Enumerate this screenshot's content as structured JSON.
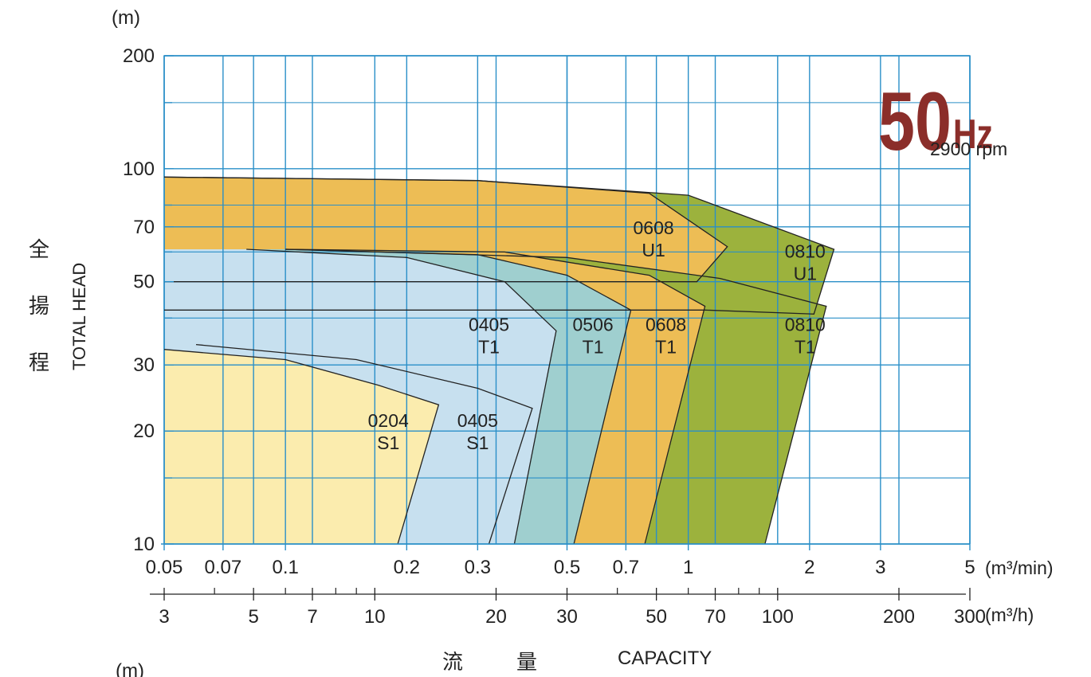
{
  "chart_data": {
    "type": "area",
    "title": "",
    "frequency_main": "50",
    "frequency_unit": "Hz",
    "speed": "2900 rpm",
    "y_unit_top": "(m)",
    "y_unit_bottom": "(m)",
    "ylabel_en": "TOTAL HEAD",
    "ylabel_cn": [
      "全",
      "揚",
      "程"
    ],
    "xlabel_en": "CAPACITY",
    "xlabel_cn": [
      "流",
      "量"
    ],
    "x_scale": "log",
    "y_scale": "log",
    "grid": true,
    "x_unit_min": "(m³/min)",
    "x_unit_h": "(m³/h)",
    "xlim_min": [
      0.05,
      5
    ],
    "ylim": [
      10,
      200
    ],
    "y_ticks": [
      {
        "value": 10,
        "label": "10"
      },
      {
        "value": 20,
        "label": "20"
      },
      {
        "value": 30,
        "label": "30"
      },
      {
        "value": 50,
        "label": "50"
      },
      {
        "value": 70,
        "label": "70"
      },
      {
        "value": 100,
        "label": "100"
      },
      {
        "value": 200,
        "label": "200"
      }
    ],
    "x_ticks_min": [
      {
        "value": 0.05,
        "label": "0.05"
      },
      {
        "value": 0.07,
        "label": "0.07"
      },
      {
        "value": 0.1,
        "label": "0.1"
      },
      {
        "value": 0.2,
        "label": "0.2"
      },
      {
        "value": 0.3,
        "label": "0.3"
      },
      {
        "value": 0.5,
        "label": "0.5"
      },
      {
        "value": 0.7,
        "label": "0.7"
      },
      {
        "value": 1,
        "label": "1"
      },
      {
        "value": 2,
        "label": "2"
      },
      {
        "value": 3,
        "label": "3"
      },
      {
        "value": 5,
        "label": "5"
      }
    ],
    "x_ticks_h": [
      {
        "value": 3,
        "label": "3"
      },
      {
        "value": 5,
        "label": "5"
      },
      {
        "value": 7,
        "label": "7"
      },
      {
        "value": 10,
        "label": "10"
      },
      {
        "value": 20,
        "label": "20"
      },
      {
        "value": 30,
        "label": "30"
      },
      {
        "value": 50,
        "label": "50"
      },
      {
        "value": 70,
        "label": "70"
      },
      {
        "value": 100,
        "label": "100"
      },
      {
        "value": 200,
        "label": "200"
      },
      {
        "value": 300,
        "label": "300"
      }
    ],
    "x_minor_h": [
      4,
      6,
      8,
      9,
      40,
      60,
      80,
      90
    ],
    "y_minor": [
      15,
      40,
      60,
      80,
      150
    ],
    "series": [
      {
        "name": "0810 U1",
        "color": "#9cb23d",
        "label_line1": "0810",
        "label_line2": "U1",
        "label_at": [
          1.95,
          58
        ],
        "points": [
          [
            0.05,
            95
          ],
          [
            0.3,
            93
          ],
          [
            1.0,
            85
          ],
          [
            2.3,
            61
          ],
          [
            2.05,
            41
          ],
          [
            1.1,
            42
          ],
          [
            0.05,
            42
          ]
        ]
      },
      {
        "name": "0608 U1",
        "color": "#edbd55",
        "label_line1": "0608",
        "label_line2": "U1",
        "label_at": [
          0.82,
          67
        ],
        "points": [
          [
            0.05,
            95
          ],
          [
            0.3,
            93
          ],
          [
            0.8,
            86
          ],
          [
            1.25,
            62
          ],
          [
            1.05,
            50
          ],
          [
            0.05,
            50
          ]
        ]
      },
      {
        "name": "0810 T1",
        "color": "#9cb23d",
        "label_line1": "0810",
        "label_line2": "T1",
        "label_at": [
          1.95,
          37
        ],
        "points": [
          [
            0.1,
            61
          ],
          [
            0.5,
            58
          ],
          [
            1.2,
            51
          ],
          [
            2.2,
            43
          ],
          [
            1.55,
            10
          ],
          [
            0.85,
            10
          ],
          [
            0.05,
            10
          ],
          [
            0.05,
            61
          ]
        ]
      },
      {
        "name": "0608 T1",
        "color": "#edbd55",
        "label_line1": "0608",
        "label_line2": "T1",
        "label_at": [
          0.88,
          37
        ],
        "points": [
          [
            0.1,
            61
          ],
          [
            0.35,
            60
          ],
          [
            0.8,
            52
          ],
          [
            1.1,
            43
          ],
          [
            0.78,
            10
          ],
          [
            0.05,
            10
          ],
          [
            0.05,
            61
          ]
        ]
      },
      {
        "name": "0506 T1",
        "color": "#9fcfcf",
        "label_line1": "0506",
        "label_line2": "T1",
        "label_at": [
          0.58,
          37
        ],
        "points": [
          [
            0.1,
            61
          ],
          [
            0.3,
            59
          ],
          [
            0.5,
            52
          ],
          [
            0.72,
            42
          ],
          [
            0.52,
            10
          ],
          [
            0.05,
            10
          ],
          [
            0.05,
            61
          ]
        ]
      },
      {
        "name": "0405 T1",
        "color": "#c7e0ef",
        "label_line1": "0405",
        "label_line2": "T1",
        "label_at": [
          0.32,
          37
        ],
        "points": [
          [
            0.08,
            61
          ],
          [
            0.2,
            58
          ],
          [
            0.35,
            50
          ],
          [
            0.47,
            37
          ],
          [
            0.37,
            10
          ],
          [
            0.05,
            10
          ],
          [
            0.05,
            61
          ]
        ]
      },
      {
        "name": "0405 S1",
        "color": "#c7e0ef",
        "label_line1": "0405",
        "label_line2": "S1",
        "label_at": [
          0.3,
          20.5
        ],
        "points": [
          [
            0.06,
            34
          ],
          [
            0.15,
            31
          ],
          [
            0.3,
            26
          ],
          [
            0.41,
            23
          ],
          [
            0.32,
            10
          ],
          [
            0.05,
            10
          ],
          [
            0.05,
            34
          ]
        ]
      },
      {
        "name": "0204 S1",
        "color": "#fbecae",
        "label_line1": "0204",
        "label_line2": "S1",
        "label_at": [
          0.18,
          20.5
        ],
        "points": [
          [
            0.05,
            33
          ],
          [
            0.1,
            31
          ],
          [
            0.17,
            26.5
          ],
          [
            0.24,
            23.5
          ],
          [
            0.19,
            10
          ],
          [
            0.05,
            10
          ]
        ]
      }
    ],
    "grid_color": "#2a8fc8",
    "outline_color": "#222222"
  }
}
